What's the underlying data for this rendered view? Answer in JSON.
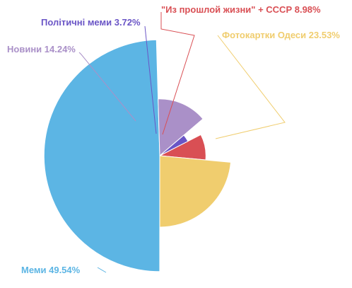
{
  "chart_data": {
    "type": "pie",
    "variant": "nightingale-rose",
    "title": "",
    "legend": "none",
    "slices": [
      {
        "name": "\"Из прошлой жизни\" + СССР",
        "percent": 8.98,
        "color": "#d94f54"
      },
      {
        "name": "Фотокартки Одеси",
        "percent": 23.53,
        "color": "#f0cd6e"
      },
      {
        "name": "Меми",
        "percent": 49.54,
        "color": "#5cb5e4"
      },
      {
        "name": "Новини",
        "percent": 14.24,
        "color": "#aa90c8"
      },
      {
        "name": "Політичні меми",
        "percent": 3.72,
        "color": "#6a55c6"
      }
    ]
  }
}
